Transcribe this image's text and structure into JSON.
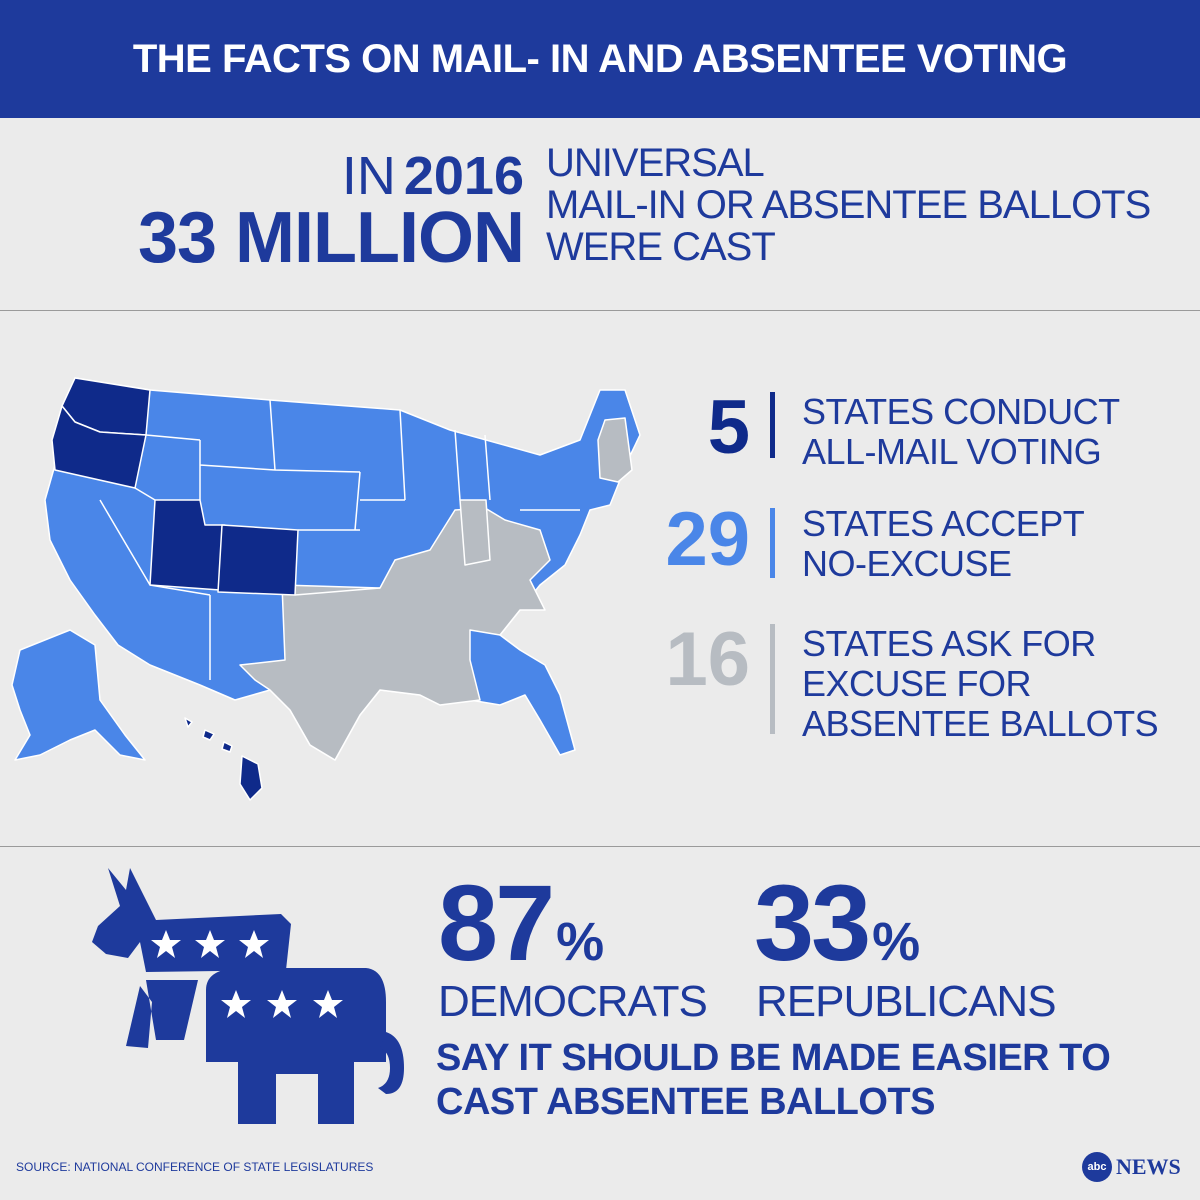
{
  "header": {
    "title": "THE FACTS ON MAIL- IN AND ABSENTEE VOTING"
  },
  "lead": {
    "prefix": "IN",
    "year": "2016",
    "number": "33 MILLION",
    "lines": [
      "UNIVERSAL",
      "MAIL-IN OR ABSENTEE BALLOTS",
      "WERE CAST"
    ]
  },
  "colors": {
    "brand_blue": "#1e3a9c",
    "all_mail": "#0f2a8a",
    "no_excuse": "#4a86e8",
    "excuse": "#b7bcc2",
    "background": "#ebebeb"
  },
  "stats": [
    {
      "number": "5",
      "lines": [
        "STATES CONDUCT",
        "ALL-MAIL VOTING"
      ],
      "category": "all_mail"
    },
    {
      "number": "29",
      "lines": [
        "STATES ACCEPT",
        "NO-EXCUSE"
      ],
      "category": "no_excuse"
    },
    {
      "number": "16",
      "lines": [
        "STATES ASK FOR",
        "EXCUSE FOR",
        "ABSENTEE BALLOTS"
      ],
      "category": "excuse"
    }
  ],
  "poll": {
    "democrats": {
      "value": "87",
      "symbol": "%",
      "label": "DEMOCRATS"
    },
    "republicans": {
      "value": "33",
      "symbol": "%",
      "label": "REPUBLICANS"
    },
    "statement_lines": [
      "SAY IT SHOULD BE MADE EASIER  TO",
      "CAST ABSENTEE BALLOTS"
    ]
  },
  "icons": {
    "map": "us-states-map-icon",
    "party": "donkey-elephant-icon"
  },
  "footer": {
    "source": "SOURCE: NATIONAL CONFERENCE OF STATE LEGISLATURES",
    "logo_mark": "abc",
    "logo_text": "NEWS"
  }
}
